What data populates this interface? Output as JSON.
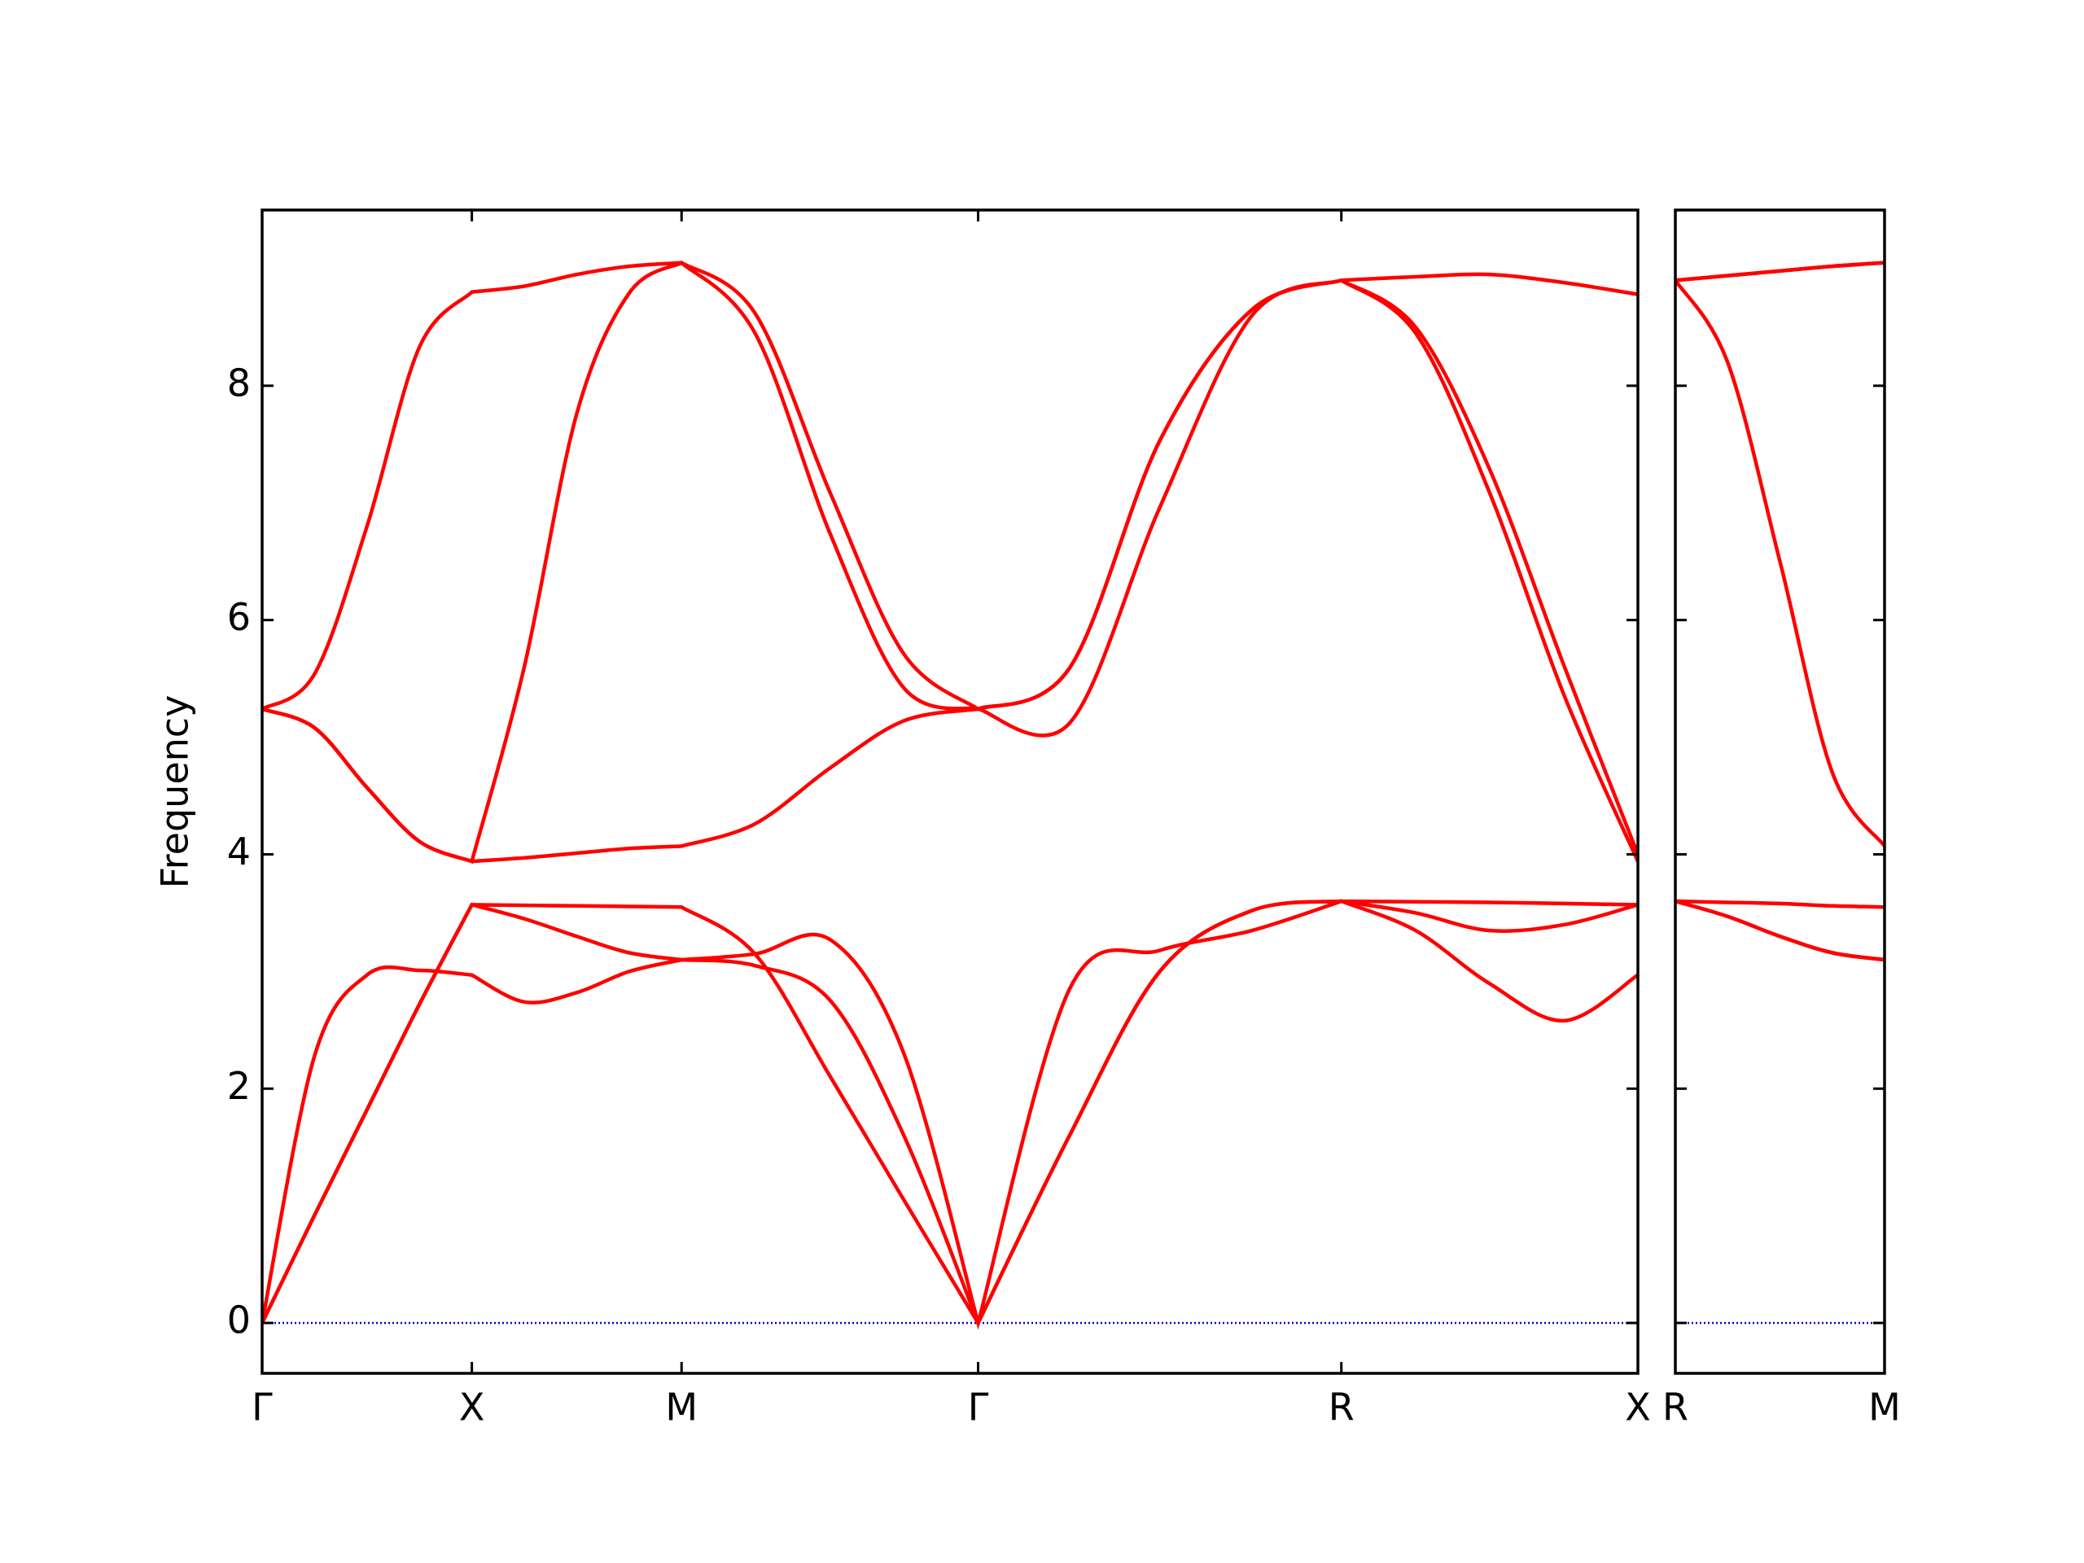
{
  "chart_data": [
    {
      "type": "line",
      "ylabel": "Frequency",
      "x": [
        0,
        0.25,
        0.5,
        0.75,
        1,
        1.25,
        1.5,
        1.75,
        2,
        2.35,
        2.71,
        3.06,
        3.414,
        3.85,
        4.28,
        4.72,
        5.146,
        5.5,
        5.85,
        6.21,
        6.56
      ],
      "xlim": [
        0,
        6.56
      ],
      "xticks": [
        {
          "value": 0,
          "label": "Γ"
        },
        {
          "value": 1,
          "label": "X"
        },
        {
          "value": 2,
          "label": "M"
        },
        {
          "value": 3.414,
          "label": "Γ"
        },
        {
          "value": 5.146,
          "label": "R"
        },
        {
          "value": 6.56,
          "label": "X"
        }
      ],
      "ylim": [
        -0.43,
        9.5
      ],
      "yticks": [
        0,
        2,
        4,
        6,
        8
      ],
      "hlines": [
        0
      ],
      "hline_color": "#0000cc",
      "series": [
        {
          "color": "#ff0000",
          "values": [
            0,
            2.28,
            2.97,
            3.01,
            2.97,
            2.74,
            2.82,
            3.0,
            3.1,
            3.15,
            3.27,
            2.3,
            0,
            2.85,
            3.18,
            3.35,
            3.6,
            3.35,
            2.9,
            2.58,
            2.97
          ]
        },
        {
          "color": "#ff0000",
          "values": [
            0,
            0.92,
            1.82,
            2.72,
            3.57,
            3.45,
            3.3,
            3.16,
            3.1,
            3.05,
            2.75,
            1.6,
            0,
            1.6,
            3.0,
            3.52,
            3.6,
            3.5,
            3.35,
            3.4,
            3.57
          ]
        },
        {
          "color": "#ff0000",
          "values": [
            0,
            0.92,
            1.82,
            2.72,
            3.57,
            3.565,
            3.56,
            3.555,
            3.55,
            3.15,
            2.1,
            1.05,
            0,
            1.6,
            3.0,
            3.52,
            3.6,
            3.595,
            3.59,
            3.58,
            3.57
          ]
        },
        {
          "color": "#ff0000",
          "values": [
            5.24,
            5.08,
            4.57,
            4.11,
            3.94,
            3.97,
            4.01,
            4.05,
            4.07,
            4.26,
            4.74,
            5.14,
            5.24,
            5.12,
            6.96,
            8.6,
            8.9,
            8.45,
            7.1,
            5.35,
            3.94
          ]
        },
        {
          "color": "#ff0000",
          "values": [
            5.24,
            5.08,
            4.57,
            4.11,
            3.94,
            5.6,
            7.76,
            8.79,
            9.05,
            8.45,
            6.73,
            5.42,
            5.24,
            5.59,
            7.53,
            8.65,
            8.9,
            8.5,
            7.3,
            5.6,
            4.0
          ]
        },
        {
          "color": "#ff0000",
          "values": [
            5.24,
            5.54,
            6.8,
            8.33,
            8.8,
            8.85,
            8.95,
            9.02,
            9.05,
            8.62,
            7.08,
            5.71,
            5.24,
            5.59,
            7.53,
            8.65,
            8.9,
            8.93,
            8.95,
            8.88,
            8.78
          ]
        }
      ]
    },
    {
      "type": "line",
      "x": [
        0,
        0.25,
        0.5,
        0.75,
        1
      ],
      "xlim": [
        0,
        1
      ],
      "xticks": [
        {
          "value": 0,
          "label": "R"
        },
        {
          "value": 1,
          "label": "M"
        }
      ],
      "ylim": [
        -0.43,
        9.5
      ],
      "yticks": [
        0,
        2,
        4,
        6,
        8
      ],
      "hlines": [
        0
      ],
      "hline_color": "#0000cc",
      "series": [
        {
          "color": "#ff0000",
          "values": [
            3.6,
            3.47,
            3.3,
            3.16,
            3.1
          ]
        },
        {
          "color": "#ff0000",
          "values": [
            3.6,
            3.47,
            3.3,
            3.16,
            3.1
          ]
        },
        {
          "color": "#ff0000",
          "values": [
            3.6,
            3.59,
            3.58,
            3.56,
            3.55
          ]
        },
        {
          "color": "#ff0000",
          "values": [
            8.9,
            8.2,
            6.5,
            4.7,
            4.07
          ]
        },
        {
          "color": "#ff0000",
          "values": [
            8.9,
            8.94,
            8.98,
            9.02,
            9.05
          ]
        },
        {
          "color": "#ff0000",
          "values": [
            8.9,
            8.94,
            8.98,
            9.02,
            9.05
          ]
        }
      ]
    }
  ]
}
